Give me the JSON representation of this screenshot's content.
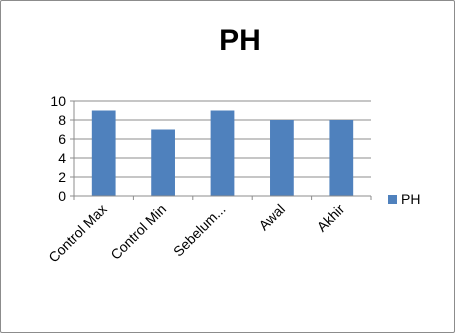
{
  "chart_data": {
    "type": "bar",
    "title": "PH",
    "categories": [
      "Control Max",
      "Control Min",
      "Sebelum...",
      "Awal",
      "Akhir"
    ],
    "series": [
      {
        "name": "PH",
        "values": [
          9,
          7,
          9,
          8,
          8
        ]
      }
    ],
    "ylim": [
      0,
      10
    ],
    "yticks": [
      0,
      2,
      4,
      6,
      8,
      10
    ],
    "xlabel": "",
    "ylabel": "",
    "grid": true,
    "legend_position": "right",
    "colors": {
      "series": "#4f81bd",
      "grid": "#8c8c8c",
      "axis": "#8c8c8c"
    }
  }
}
